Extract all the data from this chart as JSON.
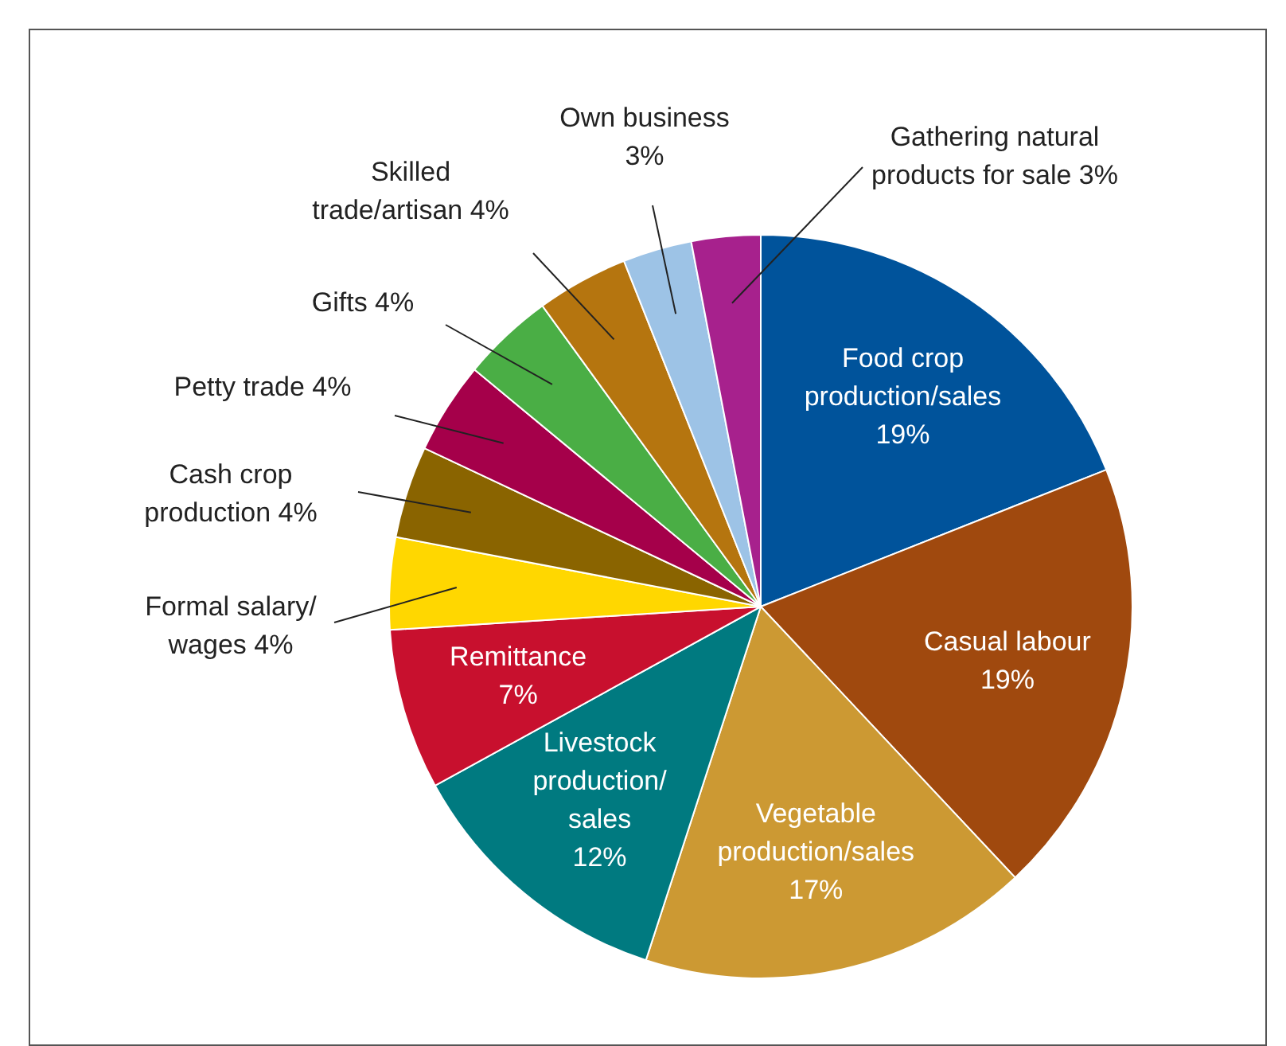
{
  "chart_data": {
    "type": "pie",
    "categories": [
      "Food crop\nproduction/sales",
      "Casual labour",
      "Vegetable\nproduction/sales",
      "Livestock\nproduction/\nsales",
      "Remittance",
      "Formal salary/\nwages",
      "Cash crop\nproduction",
      "Petty trade",
      "Gifts",
      "Skilled\ntrade/artisan",
      "Own business",
      "Gathering natural\nproducts for sale"
    ],
    "values": [
      19,
      19,
      17,
      12,
      7,
      4,
      4,
      4,
      4,
      4,
      3,
      3
    ],
    "value_labels": [
      "19%",
      "19%",
      "17%",
      "12%",
      "7%",
      "4%",
      "4%",
      "4%",
      "4%",
      "4%",
      "3%",
      "3%"
    ],
    "colors": [
      "#00539b",
      "#a0490e",
      "#cc9933",
      "#007a80",
      "#c8102e",
      "#ffd700",
      "#8a6400",
      "#a5004a",
      "#4aae45",
      "#b5750f",
      "#9dc3e6",
      "#a7218d"
    ],
    "legend": false
  }
}
